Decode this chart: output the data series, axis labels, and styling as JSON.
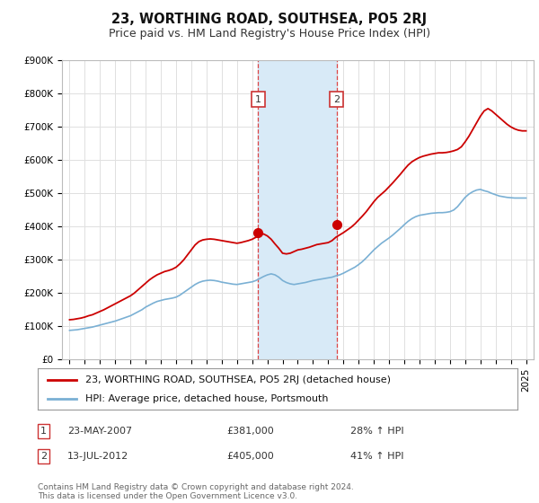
{
  "title": "23, WORTHING ROAD, SOUTHSEA, PO5 2RJ",
  "subtitle": "Price paid vs. HM Land Registry's House Price Index (HPI)",
  "ylim": [
    0,
    900000
  ],
  "yticks": [
    0,
    100000,
    200000,
    300000,
    400000,
    500000,
    600000,
    700000,
    800000,
    900000
  ],
  "ytick_labels": [
    "£0",
    "£100K",
    "£200K",
    "£300K",
    "£400K",
    "£500K",
    "£600K",
    "£700K",
    "£800K",
    "£900K"
  ],
  "xlim_start": 1994.5,
  "xlim_end": 2025.5,
  "shade_start": 2007.38,
  "shade_end": 2012.54,
  "transaction1_x": 2007.38,
  "transaction1_y": 381000,
  "transaction2_x": 2012.54,
  "transaction2_y": 405000,
  "red_line_color": "#cc0000",
  "blue_line_color": "#7ab0d4",
  "shade_color": "#d8eaf7",
  "vline_color": "#dd4444",
  "legend_red_label": "23, WORTHING ROAD, SOUTHSEA, PO5 2RJ (detached house)",
  "legend_blue_label": "HPI: Average price, detached house, Portsmouth",
  "table_row1": [
    "1",
    "23-MAY-2007",
    "£381,000",
    "28% ↑ HPI"
  ],
  "table_row2": [
    "2",
    "13-JUL-2012",
    "£405,000",
    "41% ↑ HPI"
  ],
  "footer": "Contains HM Land Registry data © Crown copyright and database right 2024.\nThis data is licensed under the Open Government Licence v3.0.",
  "background_color": "#ffffff",
  "grid_color": "#e0e0e0",
  "title_fontsize": 10.5,
  "subtitle_fontsize": 9,
  "tick_fontsize": 7.5,
  "legend_fontsize": 8,
  "table_fontsize": 8,
  "footer_fontsize": 6.5,
  "years": [
    1995,
    1995.25,
    1995.5,
    1995.75,
    1996,
    1996.25,
    1996.5,
    1996.75,
    1997,
    1997.25,
    1997.5,
    1997.75,
    1998,
    1998.25,
    1998.5,
    1998.75,
    1999,
    1999.25,
    1999.5,
    1999.75,
    2000,
    2000.25,
    2000.5,
    2000.75,
    2001,
    2001.25,
    2001.5,
    2001.75,
    2002,
    2002.25,
    2002.5,
    2002.75,
    2003,
    2003.25,
    2003.5,
    2003.75,
    2004,
    2004.25,
    2004.5,
    2004.75,
    2005,
    2005.25,
    2005.5,
    2005.75,
    2006,
    2006.25,
    2006.5,
    2006.75,
    2007,
    2007.25,
    2007.5,
    2007.75,
    2008,
    2008.25,
    2008.5,
    2008.75,
    2009,
    2009.25,
    2009.5,
    2009.75,
    2010,
    2010.25,
    2010.5,
    2010.75,
    2011,
    2011.25,
    2011.5,
    2011.75,
    2012,
    2012.25,
    2012.5,
    2012.75,
    2013,
    2013.25,
    2013.5,
    2013.75,
    2014,
    2014.25,
    2014.5,
    2014.75,
    2015,
    2015.25,
    2015.5,
    2015.75,
    2016,
    2016.25,
    2016.5,
    2016.75,
    2017,
    2017.25,
    2017.5,
    2017.75,
    2018,
    2018.25,
    2018.5,
    2018.75,
    2019,
    2019.25,
    2019.5,
    2019.75,
    2020,
    2020.25,
    2020.5,
    2020.75,
    2021,
    2021.25,
    2021.5,
    2021.75,
    2022,
    2022.25,
    2022.5,
    2022.75,
    2023,
    2023.25,
    2023.5,
    2023.75,
    2024,
    2024.25,
    2024.5,
    2024.75,
    2025
  ],
  "red_vals": [
    120000,
    121000,
    123000,
    125000,
    128000,
    132000,
    135000,
    140000,
    145000,
    150000,
    156000,
    162000,
    168000,
    174000,
    180000,
    186000,
    192000,
    200000,
    210000,
    220000,
    230000,
    240000,
    248000,
    255000,
    260000,
    265000,
    268000,
    272000,
    278000,
    288000,
    300000,
    315000,
    330000,
    345000,
    355000,
    360000,
    362000,
    363000,
    362000,
    360000,
    358000,
    356000,
    354000,
    352000,
    350000,
    352000,
    355000,
    358000,
    362000,
    368000,
    375000,
    378000,
    372000,
    362000,
    348000,
    335000,
    320000,
    318000,
    320000,
    325000,
    330000,
    332000,
    335000,
    338000,
    342000,
    346000,
    348000,
    350000,
    352000,
    358000,
    368000,
    375000,
    382000,
    390000,
    398000,
    408000,
    420000,
    432000,
    445000,
    460000,
    475000,
    488000,
    498000,
    508000,
    520000,
    532000,
    545000,
    558000,
    572000,
    585000,
    595000,
    602000,
    608000,
    612000,
    615000,
    618000,
    620000,
    622000,
    622000,
    623000,
    625000,
    628000,
    632000,
    640000,
    655000,
    672000,
    692000,
    712000,
    732000,
    748000,
    755000,
    748000,
    738000,
    728000,
    718000,
    708000,
    700000,
    694000,
    690000,
    688000,
    688000
  ],
  "blue_vals": [
    88000,
    89000,
    90000,
    92000,
    94000,
    96000,
    98000,
    101000,
    104000,
    107000,
    110000,
    113000,
    116000,
    120000,
    124000,
    128000,
    132000,
    138000,
    144000,
    150000,
    158000,
    164000,
    170000,
    175000,
    178000,
    181000,
    183000,
    185000,
    188000,
    194000,
    202000,
    210000,
    218000,
    226000,
    232000,
    236000,
    238000,
    239000,
    238000,
    236000,
    233000,
    231000,
    229000,
    227000,
    226000,
    228000,
    230000,
    232000,
    234000,
    238000,
    244000,
    250000,
    255000,
    258000,
    255000,
    248000,
    238000,
    232000,
    228000,
    226000,
    228000,
    230000,
    232000,
    235000,
    238000,
    240000,
    242000,
    244000,
    246000,
    248000,
    252000,
    255000,
    260000,
    266000,
    272000,
    278000,
    286000,
    295000,
    306000,
    318000,
    330000,
    340000,
    350000,
    358000,
    366000,
    375000,
    385000,
    395000,
    406000,
    416000,
    424000,
    430000,
    434000,
    436000,
    438000,
    440000,
    441000,
    442000,
    442000,
    443000,
    445000,
    450000,
    460000,
    474000,
    488000,
    498000,
    505000,
    510000,
    512000,
    508000,
    505000,
    500000,
    496000,
    492000,
    490000,
    488000,
    487000,
    486000,
    486000,
    486000,
    486000
  ]
}
